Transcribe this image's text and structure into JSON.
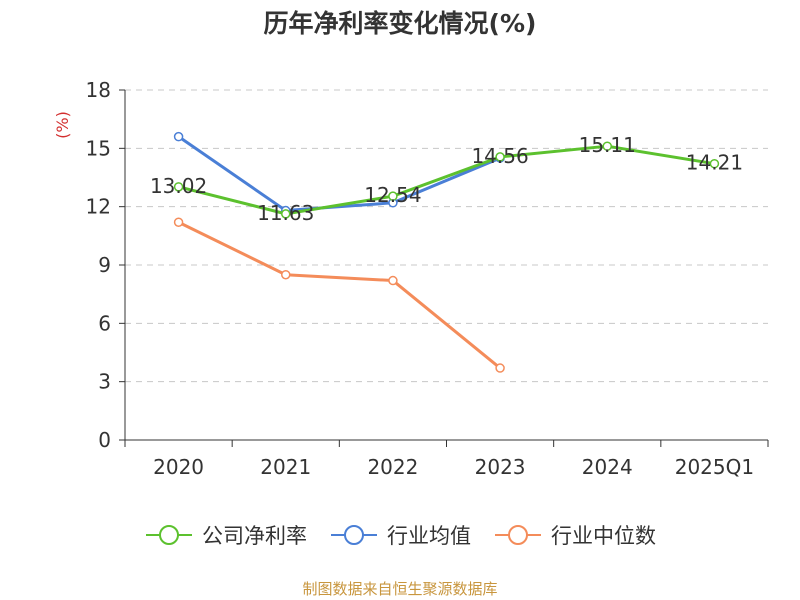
{
  "chart_data": {
    "type": "line",
    "title": "历年净利率变化情况(%)",
    "ylabel": "(%)",
    "categories": [
      "2020",
      "2021",
      "2022",
      "2023",
      "2024",
      "2025Q1"
    ],
    "yticks": [
      0,
      3,
      6,
      9,
      12,
      15,
      18
    ],
    "ylim": [
      0,
      18
    ],
    "grid": "horizontal dashed",
    "legend_position": "bottom",
    "series": [
      {
        "name": "公司净利率",
        "color": "#5cc12e",
        "values": [
          13.02,
          11.63,
          12.54,
          14.56,
          15.11,
          14.21
        ],
        "labels": [
          "13.02",
          "11.63",
          "12.54",
          "14.56",
          "15.11",
          "14.21"
        ]
      },
      {
        "name": "行业均值",
        "color": "#4a7fd6",
        "values": [
          15.6,
          11.8,
          12.2,
          14.5,
          null,
          null
        ]
      },
      {
        "name": "行业中位数",
        "color": "#f48c5a",
        "values": [
          11.2,
          8.5,
          8.2,
          3.7,
          null,
          null
        ]
      }
    ]
  },
  "source_note": "制图数据来自恒生聚源数据库"
}
